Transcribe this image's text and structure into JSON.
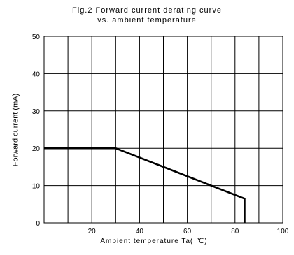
{
  "chart_data": {
    "type": "line",
    "title": "Fig.2 Forward current derating curve",
    "subtitle": "vs. ambient temperature",
    "xlabel": "Ambient temperature Ta( ℃)",
    "ylabel": "Forward current (mA)",
    "xlim": [
      0,
      100
    ],
    "ylim": [
      0,
      50
    ],
    "x_ticks": [
      20,
      40,
      60,
      80,
      100
    ],
    "y_ticks": [
      0,
      10,
      20,
      30,
      40,
      50
    ],
    "x_grid": [
      10,
      20,
      30,
      40,
      50,
      60,
      70,
      80,
      90,
      100
    ],
    "y_grid": [
      10,
      20,
      30,
      40,
      50
    ],
    "grid": true,
    "series": [
      {
        "x": [
          0,
          30,
          84,
          84
        ],
        "y": [
          20,
          20,
          6.5,
          0
        ]
      }
    ],
    "line_color": "#000000"
  }
}
